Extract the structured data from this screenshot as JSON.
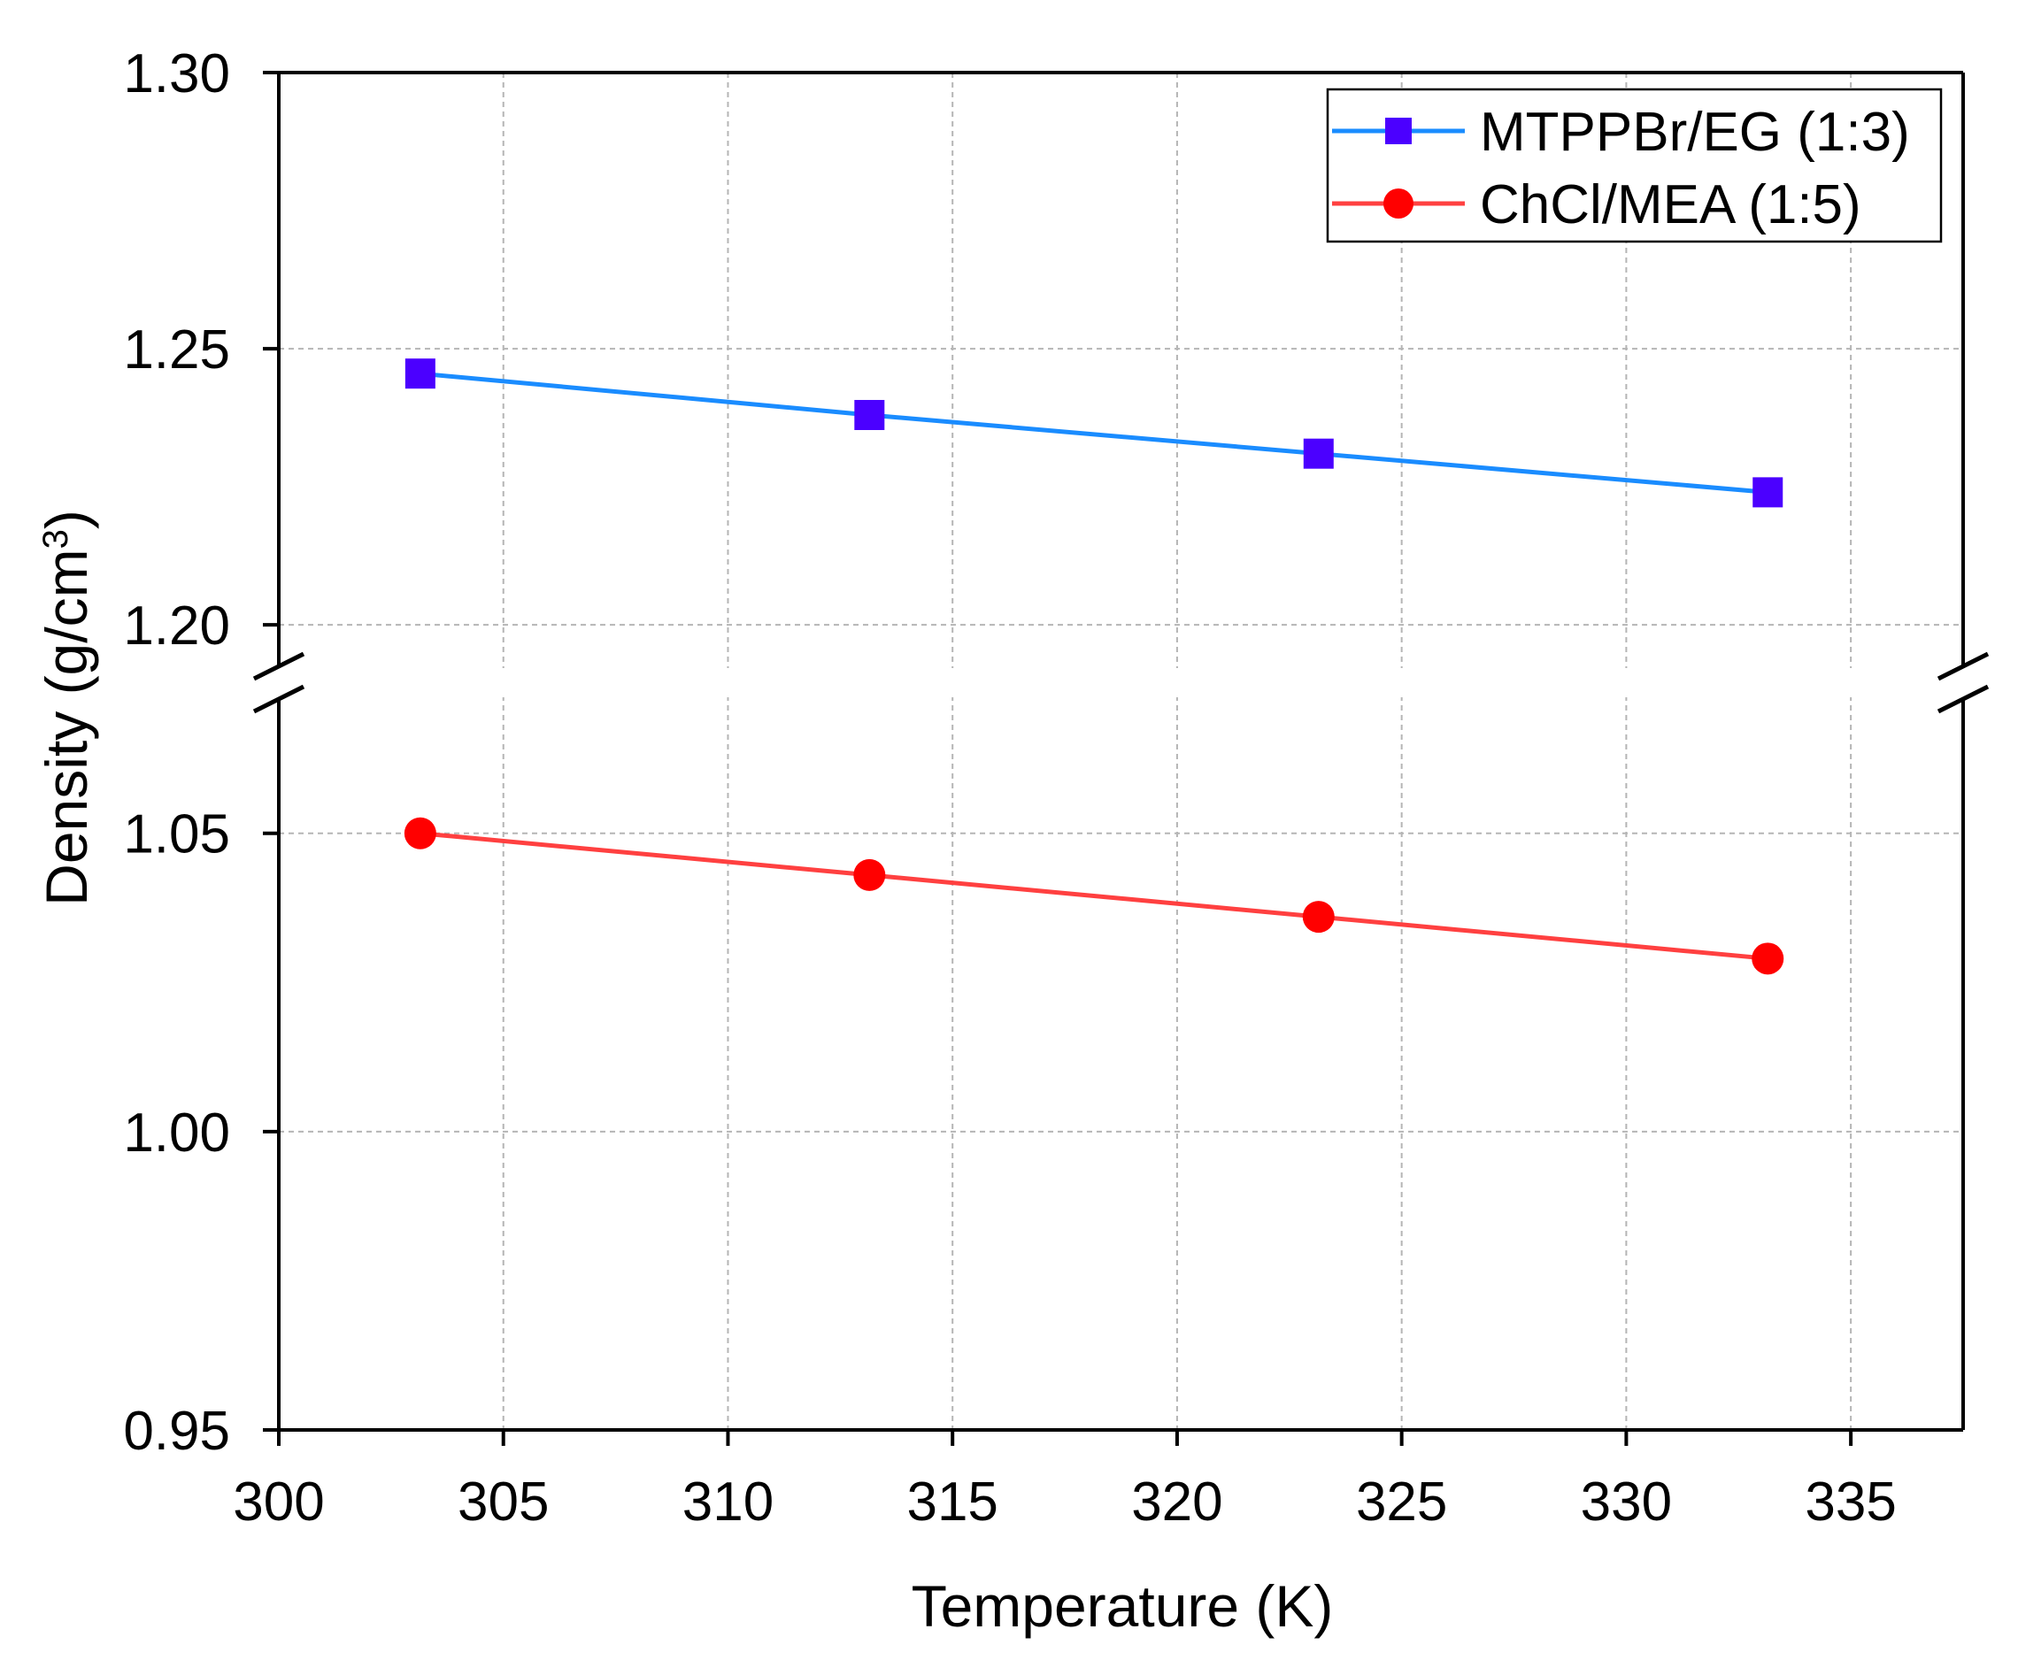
{
  "chart_data": {
    "type": "line",
    "title": "",
    "xlabel": "Temperature (K)",
    "ylabel": "Density (g/cm",
    "ylabel_superscript": "3",
    "ylabel_close": ")",
    "xlim": [
      300,
      337.5
    ],
    "ylim": [
      0.95,
      1.3
    ],
    "y_break": {
      "lower": [
        0.95,
        1.0725
      ],
      "upper": [
        1.1925,
        1.3
      ]
    },
    "x_ticks": [
      300,
      305,
      310,
      315,
      320,
      325,
      330,
      335
    ],
    "x_tick_labels": [
      "300",
      "305",
      "310",
      "315",
      "320",
      "325",
      "330",
      "335"
    ],
    "y_ticks": [
      0.95,
      1.0,
      1.05,
      1.2,
      1.25,
      1.3
    ],
    "y_tick_labels": [
      "0.95",
      "1.00",
      "1.05",
      "1.20",
      "1.25",
      "1.30"
    ],
    "grid": true,
    "legend_position": "top-right",
    "series": [
      {
        "name": "MTPPBr/EG (1:3)",
        "x": [
          303.15,
          313.15,
          323.15,
          333.15
        ],
        "y": [
          1.2455,
          1.238,
          1.231,
          1.224
        ],
        "marker": "square",
        "line_color": "#1a8cff",
        "marker_color": "#4b00ff"
      },
      {
        "name": "ChCl/MEA (1:5)",
        "x": [
          303.15,
          313.15,
          323.15,
          333.15
        ],
        "y": [
          1.05,
          1.043,
          1.036,
          1.029
        ],
        "marker": "circle",
        "line_color": "#ff4040",
        "marker_color": "#ff0000"
      }
    ]
  }
}
